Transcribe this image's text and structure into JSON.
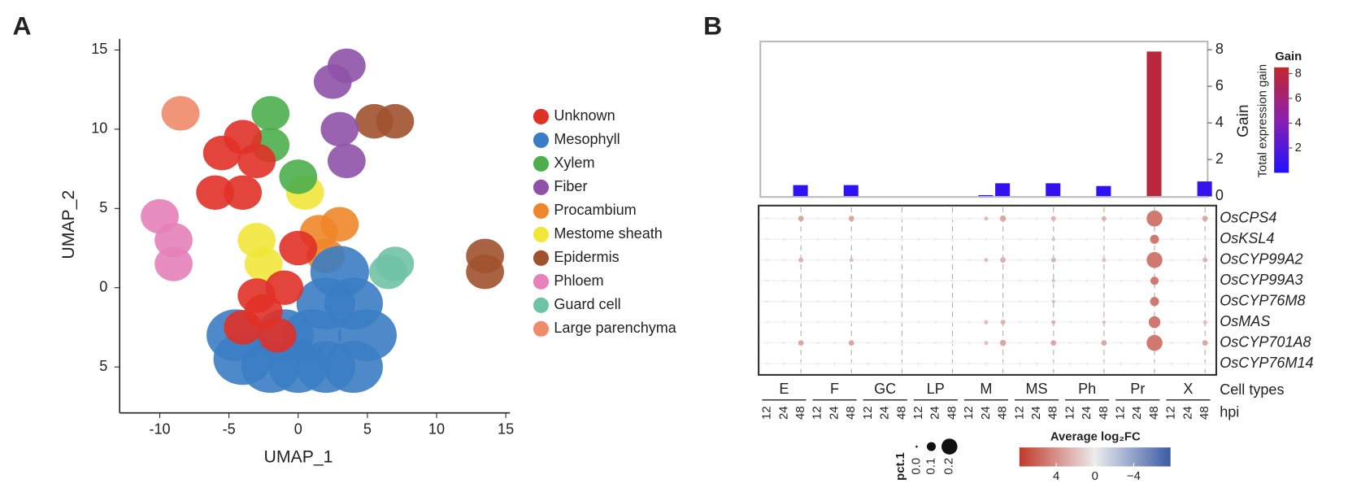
{
  "panels": [
    "A",
    "B"
  ],
  "chart_data": [
    {
      "type": "scatter",
      "xlabel": "UMAP_1",
      "ylabel": "UMAP_2",
      "xlim": [
        -12.9,
        15.3
      ],
      "ylim": [
        -7.9,
        15.7
      ],
      "xticks": [
        -10,
        -5,
        0,
        5,
        10,
        15
      ],
      "yticks": [
        15,
        10,
        5,
        0,
        {
          "value": -5,
          "label": "5"
        }
      ],
      "series": [
        {
          "name": "Unknown",
          "color": "#e03127",
          "x": [
            -4,
            -2.5,
            -1,
            -3,
            -1.5,
            0,
            -5.5,
            -4,
            -3,
            -6,
            -4
          ],
          "y": [
            -2.5,
            -1.5,
            0,
            -0.5,
            -3,
            2.5,
            8.5,
            9.5,
            8,
            6,
            6
          ]
        },
        {
          "name": "Mesophyll",
          "color": "#3b7dc4",
          "x": [
            -4,
            -2,
            0,
            2,
            4,
            5,
            4,
            2,
            1,
            -1,
            3,
            -4.5
          ],
          "y": [
            -4.5,
            -5,
            -5,
            -5,
            -5,
            -3,
            -1,
            -1,
            -3,
            -3,
            1,
            -3
          ]
        },
        {
          "name": "Xylem",
          "color": "#4cae4c",
          "x": [
            -2,
            -2,
            0
          ],
          "y": [
            11,
            9,
            7
          ]
        },
        {
          "name": "Fiber",
          "color": "#8e52a8",
          "x": [
            2.5,
            3.5,
            3,
            3.5
          ],
          "y": [
            13,
            14,
            10,
            8
          ]
        },
        {
          "name": "Procambium",
          "color": "#f0862a",
          "x": [
            1.5,
            2,
            3
          ],
          "y": [
            3.5,
            2,
            4
          ]
        },
        {
          "name": "Mestome sheath",
          "color": "#f2e63a",
          "x": [
            -3,
            -2.5,
            0.5
          ],
          "y": [
            3,
            1.5,
            6
          ]
        },
        {
          "name": "Epidermis",
          "color": "#a0522d",
          "x": [
            5.5,
            7,
            13.5,
            13.5
          ],
          "y": [
            10.5,
            10.5,
            2,
            1
          ]
        },
        {
          "name": "Phloem",
          "color": "#e681b9",
          "x": [
            -10,
            -9,
            -9
          ],
          "y": [
            4.5,
            3,
            1.5
          ]
        },
        {
          "name": "Guard cell",
          "color": "#6fc2a5",
          "x": [
            6.5,
            7
          ],
          "y": [
            1,
            1.5
          ]
        },
        {
          "name": "Large parenchyma",
          "color": "#f08a6a",
          "x": [
            -8.5
          ],
          "y": [
            11
          ]
        }
      ]
    },
    {
      "type": "bar",
      "ylabel": "Gain",
      "ylim": [
        0,
        8.45
      ],
      "yticks": [
        0,
        2,
        4,
        6,
        8
      ],
      "values": [
        0,
        0,
        0.6,
        0,
        0,
        0.6,
        0,
        0,
        0,
        0,
        0,
        0,
        0,
        0.05,
        0.7,
        0,
        0,
        0.7,
        0,
        0,
        0.55,
        0,
        0,
        7.9,
        0,
        0,
        0.8
      ],
      "colorbar": {
        "title": "Gain",
        "label": "Total expression gain",
        "lim": [
          0,
          8.5
        ],
        "ticks": [
          2,
          4,
          6,
          8
        ],
        "colors": [
          "#2010ff",
          "#8c1fb0",
          "#c0282a"
        ]
      }
    },
    {
      "type": "dot",
      "groups": [
        "E",
        "F",
        "GC",
        "LP",
        "M",
        "MS",
        "Ph",
        "Pr",
        "X"
      ],
      "hpi": [
        12,
        24,
        48
      ],
      "x_title": "Cell types",
      "hpi_title": "hpi",
      "series": [
        {
          "name": "OsCPS4",
          "fc": [
            0,
            0,
            3,
            0,
            0,
            3,
            0,
            0,
            0,
            0,
            0,
            0,
            0,
            2,
            3,
            0,
            0,
            2.5,
            0,
            0,
            2.5,
            0,
            0,
            5,
            0,
            0,
            3
          ],
          "pct": [
            0.01,
            0.01,
            0.05,
            0.01,
            0.01,
            0.05,
            0.01,
            0.01,
            0.01,
            0.01,
            0.01,
            0.01,
            0.01,
            0.03,
            0.06,
            0.01,
            0.01,
            0.04,
            0.01,
            0.01,
            0.04,
            0.01,
            0.01,
            0.2,
            0.01,
            0.01,
            0.05
          ]
        },
        {
          "name": "OsKSL4",
          "fc": [
            0,
            0,
            0,
            0,
            0,
            0,
            0,
            0,
            0,
            0,
            0,
            0,
            0,
            0,
            0,
            0,
            0,
            2,
            0,
            0,
            0,
            0,
            0,
            5,
            0,
            0,
            0
          ],
          "pct": [
            0.01,
            0.01,
            0.01,
            0.01,
            0.01,
            0.01,
            0.01,
            0.01,
            0.01,
            0.01,
            0.01,
            0.01,
            0.01,
            0.01,
            0.01,
            0.01,
            0.01,
            0.02,
            0.01,
            0.01,
            0.01,
            0.01,
            0.01,
            0.1,
            0.01,
            0.01,
            0.01
          ]
        },
        {
          "name": "OsCYP99A2",
          "fc": [
            0,
            0,
            2.5,
            0,
            0,
            2,
            0,
            0,
            0,
            0,
            0,
            0,
            0,
            2,
            2.5,
            0,
            0,
            2.5,
            0,
            0,
            2,
            0,
            0,
            5,
            0,
            0,
            2.5
          ],
          "pct": [
            0.01,
            0.01,
            0.04,
            0.01,
            0.01,
            0.03,
            0.01,
            0.01,
            0.01,
            0.01,
            0.01,
            0.01,
            0.01,
            0.03,
            0.05,
            0.01,
            0.01,
            0.04,
            0.01,
            0.01,
            0.03,
            0.01,
            0.01,
            0.2,
            0.01,
            0.01,
            0.04
          ]
        },
        {
          "name": "OsCYP99A3",
          "fc": [
            0,
            0,
            0,
            0,
            0,
            0,
            0,
            0,
            0,
            0,
            0,
            0,
            0,
            0,
            0,
            0,
            0,
            2,
            0,
            0,
            0,
            0,
            0,
            5,
            0,
            0,
            0
          ],
          "pct": [
            0.01,
            0.01,
            0.01,
            0.01,
            0.01,
            0.01,
            0.01,
            0.01,
            0.01,
            0.01,
            0.01,
            0.01,
            0.01,
            0.01,
            0.01,
            0.01,
            0.01,
            0.02,
            0.01,
            0.01,
            0.01,
            0.01,
            0.01,
            0.09,
            0.01,
            0.01,
            0.01
          ]
        },
        {
          "name": "OsCYP76M8",
          "fc": [
            0,
            0,
            0,
            0,
            0,
            0,
            0,
            0,
            0,
            0,
            0,
            0,
            0,
            0,
            0,
            0,
            0,
            2,
            0,
            0,
            0,
            0,
            0,
            5,
            0,
            0,
            0
          ],
          "pct": [
            0.01,
            0.01,
            0.01,
            0.01,
            0.01,
            0.01,
            0.01,
            0.01,
            0.01,
            0.01,
            0.01,
            0.01,
            0.01,
            0.01,
            0.01,
            0.01,
            0.01,
            0.02,
            0.01,
            0.01,
            0.01,
            0.01,
            0.01,
            0.1,
            0.01,
            0.01,
            0.01
          ]
        },
        {
          "name": "OsMAS",
          "fc": [
            0,
            0,
            0,
            0,
            0,
            0,
            0,
            0,
            0,
            0,
            0,
            0,
            0,
            2,
            2.5,
            0,
            0,
            2.5,
            0,
            0,
            2,
            0,
            0,
            5,
            0,
            0,
            2
          ],
          "pct": [
            0.01,
            0.01,
            0.01,
            0.01,
            0.01,
            0.01,
            0.01,
            0.01,
            0.01,
            0.01,
            0.01,
            0.01,
            0.01,
            0.03,
            0.04,
            0.01,
            0.01,
            0.03,
            0.01,
            0.01,
            0.02,
            0.01,
            0.01,
            0.14,
            0.01,
            0.01,
            0.03
          ]
        },
        {
          "name": "OsCYP701A8",
          "fc": [
            0,
            0,
            3,
            0,
            0,
            3,
            0,
            0,
            0,
            0,
            0,
            0,
            0,
            2,
            3,
            0,
            0,
            3,
            0,
            0,
            3,
            0,
            0,
            5,
            0,
            0,
            3
          ],
          "pct": [
            0.01,
            0.01,
            0.05,
            0.01,
            0.01,
            0.05,
            0.01,
            0.01,
            0.01,
            0.01,
            0.01,
            0.01,
            0.01,
            0.03,
            0.06,
            0.01,
            0.01,
            0.05,
            0.01,
            0.01,
            0.05,
            0.01,
            0.01,
            0.2,
            0.01,
            0.01,
            0.05
          ]
        },
        {
          "name": "OsCYP76M14",
          "fc": [
            0,
            0,
            0,
            0,
            0,
            0,
            0,
            0,
            0,
            0,
            0,
            0,
            0,
            0,
            0,
            0,
            0,
            0,
            0,
            0,
            0,
            0,
            0,
            0,
            0,
            0,
            0
          ],
          "pct": [
            0.01,
            0.01,
            0.01,
            0.01,
            0.01,
            0.01,
            0.01,
            0.01,
            0.01,
            0.01,
            0.01,
            0.01,
            0.01,
            0.01,
            0.01,
            0.01,
            0.01,
            0.01,
            0.01,
            0.01,
            0.01,
            0.01,
            0.01,
            0.01,
            0.01,
            0.01,
            0.01
          ]
        }
      ],
      "color_legend": {
        "title": "Average log₂FC",
        "lim": [
          7.8,
          -7.8
        ],
        "ticks": [
          4,
          0,
          {
            "value": -4,
            "label": "−4"
          }
        ],
        "colors": [
          "#c0392b",
          "#ececec",
          "#3b5ba5"
        ]
      },
      "size_legend": {
        "title": "pct.1",
        "ticks": [
          {
            "value": 0,
            "label": "0.0"
          },
          0.1,
          0.2
        ]
      }
    }
  ]
}
